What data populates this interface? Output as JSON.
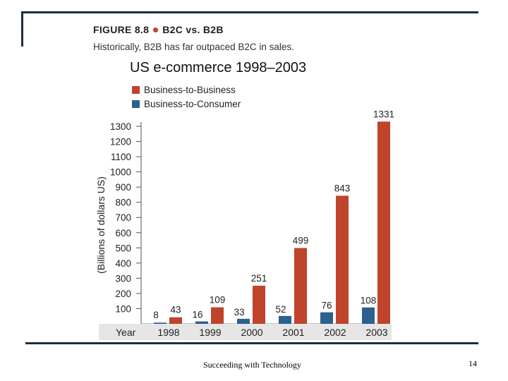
{
  "slide": {
    "figure_number": "FIGURE 8.8",
    "figure_title": "B2C vs. B2B",
    "caption": "Historically, B2B has far outpaced B2C in sales.",
    "footer": "Succeeding with Technology",
    "page_number": "14"
  },
  "colors": {
    "b2b": "#c0432c",
    "b2c": "#2d5f8f",
    "frame": "#1f2a44"
  },
  "chart_data": {
    "type": "bar",
    "title": "US e-commerce 1998–2003",
    "xlabel": "Year",
    "ylabel": "(Billions of dollars US)",
    "categories": [
      "1998",
      "1999",
      "2000",
      "2001",
      "2002",
      "2003"
    ],
    "series": [
      {
        "name": "Business-to-Consumer",
        "values": [
          8,
          16,
          33,
          52,
          76,
          108
        ]
      },
      {
        "name": "Business-to-Business",
        "values": [
          43,
          109,
          251,
          499,
          843,
          1331
        ]
      }
    ],
    "ylim": [
      0,
      1350
    ],
    "yticks": [
      100,
      200,
      300,
      400,
      500,
      600,
      700,
      800,
      900,
      1000,
      1100,
      1200,
      1300
    ],
    "legend": [
      "Business-to-Business",
      "Business-to-Consumer"
    ],
    "legend_position": "top-left",
    "grid": false
  }
}
